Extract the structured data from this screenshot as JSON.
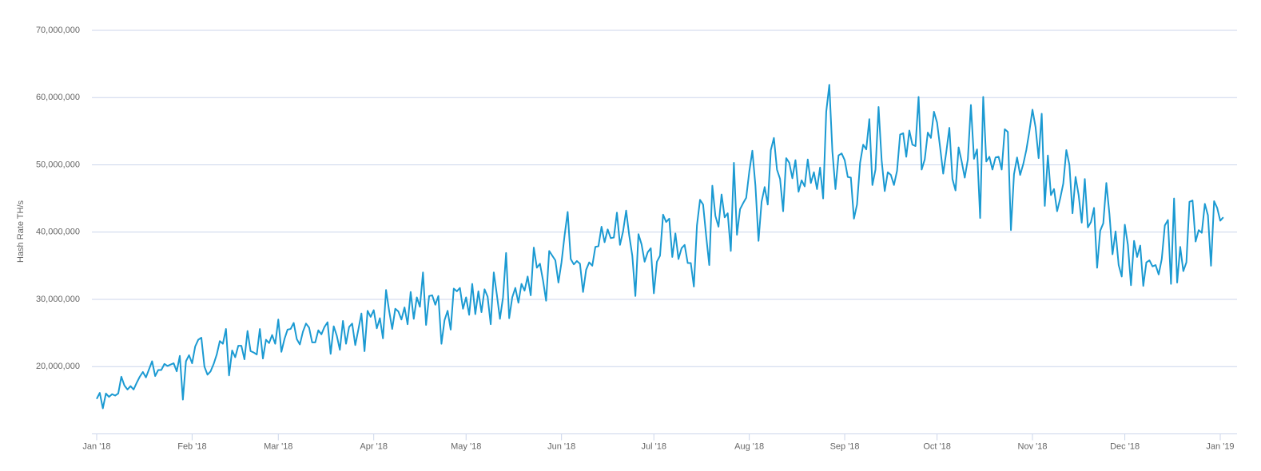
{
  "chart_data": {
    "type": "line",
    "ylabel": "Hash Rate TH/s",
    "color": "#1b9ad2",
    "grid": true,
    "xlim": [
      0,
      365
    ],
    "xticks": [
      {
        "value": 0,
        "label": "Jan '18"
      },
      {
        "value": 31,
        "label": "Feb '18"
      },
      {
        "value": 59,
        "label": "Mar '18"
      },
      {
        "value": 90,
        "label": "Apr '18"
      },
      {
        "value": 120,
        "label": "May '18"
      },
      {
        "value": 151,
        "label": "Jun '18"
      },
      {
        "value": 181,
        "label": "Jul '18"
      },
      {
        "value": 212,
        "label": "Aug '18"
      },
      {
        "value": 243,
        "label": "Sep '18"
      },
      {
        "value": 273,
        "label": "Oct '18"
      },
      {
        "value": 304,
        "label": "Nov '18"
      },
      {
        "value": 334,
        "label": "Dec '18"
      },
      {
        "value": 365,
        "label": "Jan '19"
      }
    ],
    "ylim": [
      10000000,
      70000000
    ],
    "yticks": [
      {
        "value": 20000000,
        "label": "20,000,000"
      },
      {
        "value": 30000000,
        "label": "30,000,000"
      },
      {
        "value": 40000000,
        "label": "40,000,000"
      },
      {
        "value": 50000000,
        "label": "50,000,000"
      },
      {
        "value": 60000000,
        "label": "60,000,000"
      },
      {
        "value": 70000000,
        "label": "70,000,000"
      }
    ],
    "values": [
      15200000,
      16100000,
      13800000,
      16000000,
      15500000,
      15900000,
      15700000,
      16000000,
      18500000,
      17200000,
      16600000,
      17100000,
      16600000,
      17600000,
      18500000,
      19200000,
      18400000,
      19600000,
      20800000,
      18600000,
      19500000,
      19500000,
      20400000,
      20100000,
      20300000,
      20500000,
      19300000,
      21600000,
      15100000,
      20800000,
      21700000,
      20500000,
      23000000,
      24000000,
      24300000,
      20000000,
      18800000,
      19300000,
      20400000,
      21800000,
      23800000,
      23400000,
      25600000,
      18700000,
      22400000,
      21400000,
      23100000,
      23100000,
      21100000,
      25300000,
      22300000,
      22100000,
      21800000,
      25600000,
      21200000,
      24000000,
      23500000,
      24700000,
      23400000,
      27000000,
      22200000,
      24100000,
      25500000,
      25600000,
      26500000,
      24100000,
      23300000,
      25200000,
      26400000,
      25800000,
      23600000,
      23600000,
      25400000,
      24800000,
      25900000,
      26600000,
      21900000,
      26000000,
      24600000,
      22500000,
      26800000,
      23400000,
      25900000,
      26400000,
      23200000,
      25500000,
      27900000,
      22300000,
      28300000,
      27400000,
      28400000,
      25700000,
      27200000,
      24200000,
      31400000,
      28300000,
      25600000,
      28600000,
      28200000,
      27000000,
      28800000,
      26300000,
      31100000,
      27100000,
      30300000,
      28900000,
      34000000,
      26200000,
      30500000,
      30600000,
      29200000,
      30500000,
      23400000,
      26900000,
      28300000,
      25500000,
      31600000,
      31200000,
      31700000,
      28600000,
      30300000,
      27700000,
      32300000,
      27800000,
      31200000,
      28100000,
      31500000,
      30400000,
      26300000,
      34000000,
      30700000,
      27100000,
      30300000,
      36900000,
      27200000,
      30300000,
      31700000,
      29500000,
      32300000,
      31300000,
      33400000,
      30600000,
      37700000,
      34700000,
      35300000,
      32800000,
      29800000,
      37200000,
      36500000,
      35800000,
      32500000,
      35500000,
      39500000,
      43000000,
      36000000,
      35200000,
      35700000,
      35300000,
      31100000,
      34400000,
      35500000,
      35000000,
      37800000,
      37900000,
      40800000,
      38500000,
      40400000,
      39100000,
      39200000,
      42900000,
      38100000,
      40100000,
      43200000,
      39500000,
      36500000,
      30500000,
      39700000,
      38200000,
      35600000,
      37000000,
      37600000,
      30900000,
      35600000,
      36500000,
      42600000,
      41500000,
      42000000,
      36300000,
      39800000,
      36000000,
      37600000,
      38100000,
      35400000,
      35400000,
      31900000,
      41000000,
      44800000,
      44100000,
      39400000,
      35100000,
      46900000,
      42400000,
      40800000,
      45600000,
      42200000,
      42800000,
      37200000,
      50300000,
      39600000,
      43400000,
      44300000,
      45100000,
      49000000,
      52100000,
      46900000,
      38700000,
      44500000,
      46700000,
      44100000,
      52200000,
      54000000,
      49300000,
      47900000,
      43100000,
      51000000,
      50300000,
      48000000,
      50700000,
      46000000,
      47700000,
      46800000,
      50800000,
      47300000,
      48900000,
      46400000,
      49600000,
      45000000,
      57900000,
      61900000,
      52000000,
      46400000,
      51400000,
      51700000,
      50700000,
      48200000,
      48100000,
      42000000,
      44100000,
      50300000,
      53000000,
      52300000,
      56800000,
      47000000,
      49300000,
      58600000,
      50700000,
      46100000,
      48900000,
      48500000,
      47000000,
      49100000,
      54500000,
      54700000,
      51200000,
      55100000,
      53000000,
      52800000,
      60100000,
      49300000,
      50800000,
      54800000,
      54000000,
      57900000,
      56300000,
      52600000,
      48700000,
      51900000,
      55500000,
      47900000,
      46200000,
      52600000,
      50500000,
      48100000,
      50800000,
      58900000,
      50900000,
      52300000,
      42100000,
      60100000,
      50500000,
      51200000,
      49300000,
      51100000,
      51200000,
      49300000,
      55300000,
      54900000,
      40300000,
      48600000,
      51100000,
      48500000,
      50100000,
      52200000,
      55000000,
      58200000,
      55600000,
      51000000,
      57600000,
      43900000,
      51400000,
      45500000,
      46400000,
      43100000,
      45000000,
      47200000,
      52200000,
      50000000,
      42800000,
      48200000,
      45500000,
      41400000,
      47900000,
      40700000,
      41500000,
      43600000,
      34700000,
      40200000,
      41300000,
      47300000,
      42700000,
      36700000,
      40100000,
      35100000,
      33400000,
      41100000,
      38100000,
      32100000,
      38700000,
      36300000,
      38000000,
      32000000,
      35500000,
      35800000,
      34900000,
      35100000,
      33700000,
      36000000,
      41000000,
      41800000,
      32300000,
      45000000,
      32500000,
      37800000,
      34200000,
      35500000,
      44500000,
      44700000,
      38600000,
      40300000,
      39900000,
      44200000,
      42500000,
      35000000,
      44600000,
      43600000,
      41700000,
      42200000
    ]
  }
}
